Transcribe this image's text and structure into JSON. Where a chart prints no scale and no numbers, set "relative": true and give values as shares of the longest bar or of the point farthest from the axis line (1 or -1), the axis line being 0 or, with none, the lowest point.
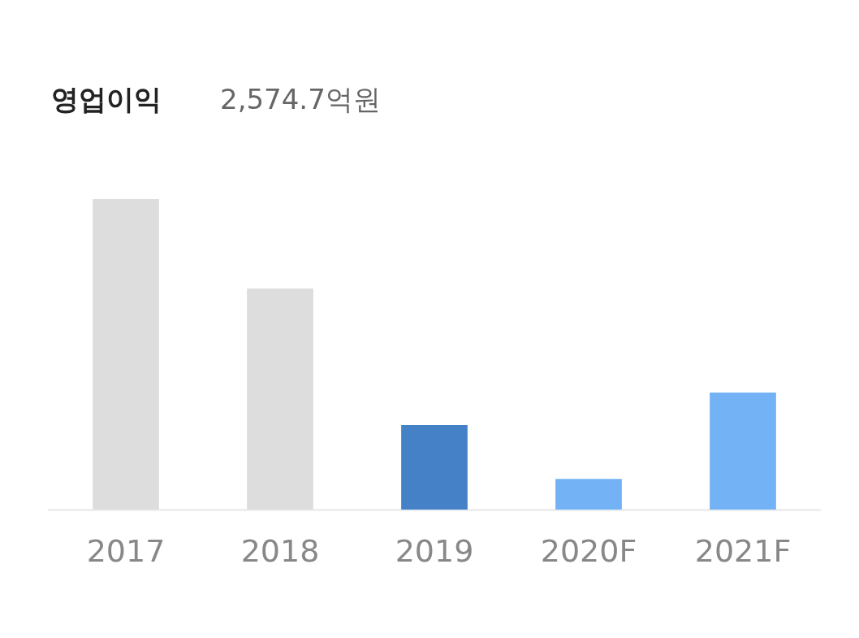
{
  "chart_data": {
    "type": "bar",
    "title": "영업이익",
    "subtitle": "2,574.7억원",
    "relative": true,
    "categories": [
      "2017",
      "2018",
      "2019",
      "2020F",
      "2021F"
    ],
    "values": [
      1,
      0.712,
      0.272,
      0.099,
      0.377
    ],
    "colors": [
      "#dddddd",
      "#dddddd",
      "#4581c6",
      "#72b2f5",
      "#72b2f5"
    ]
  }
}
